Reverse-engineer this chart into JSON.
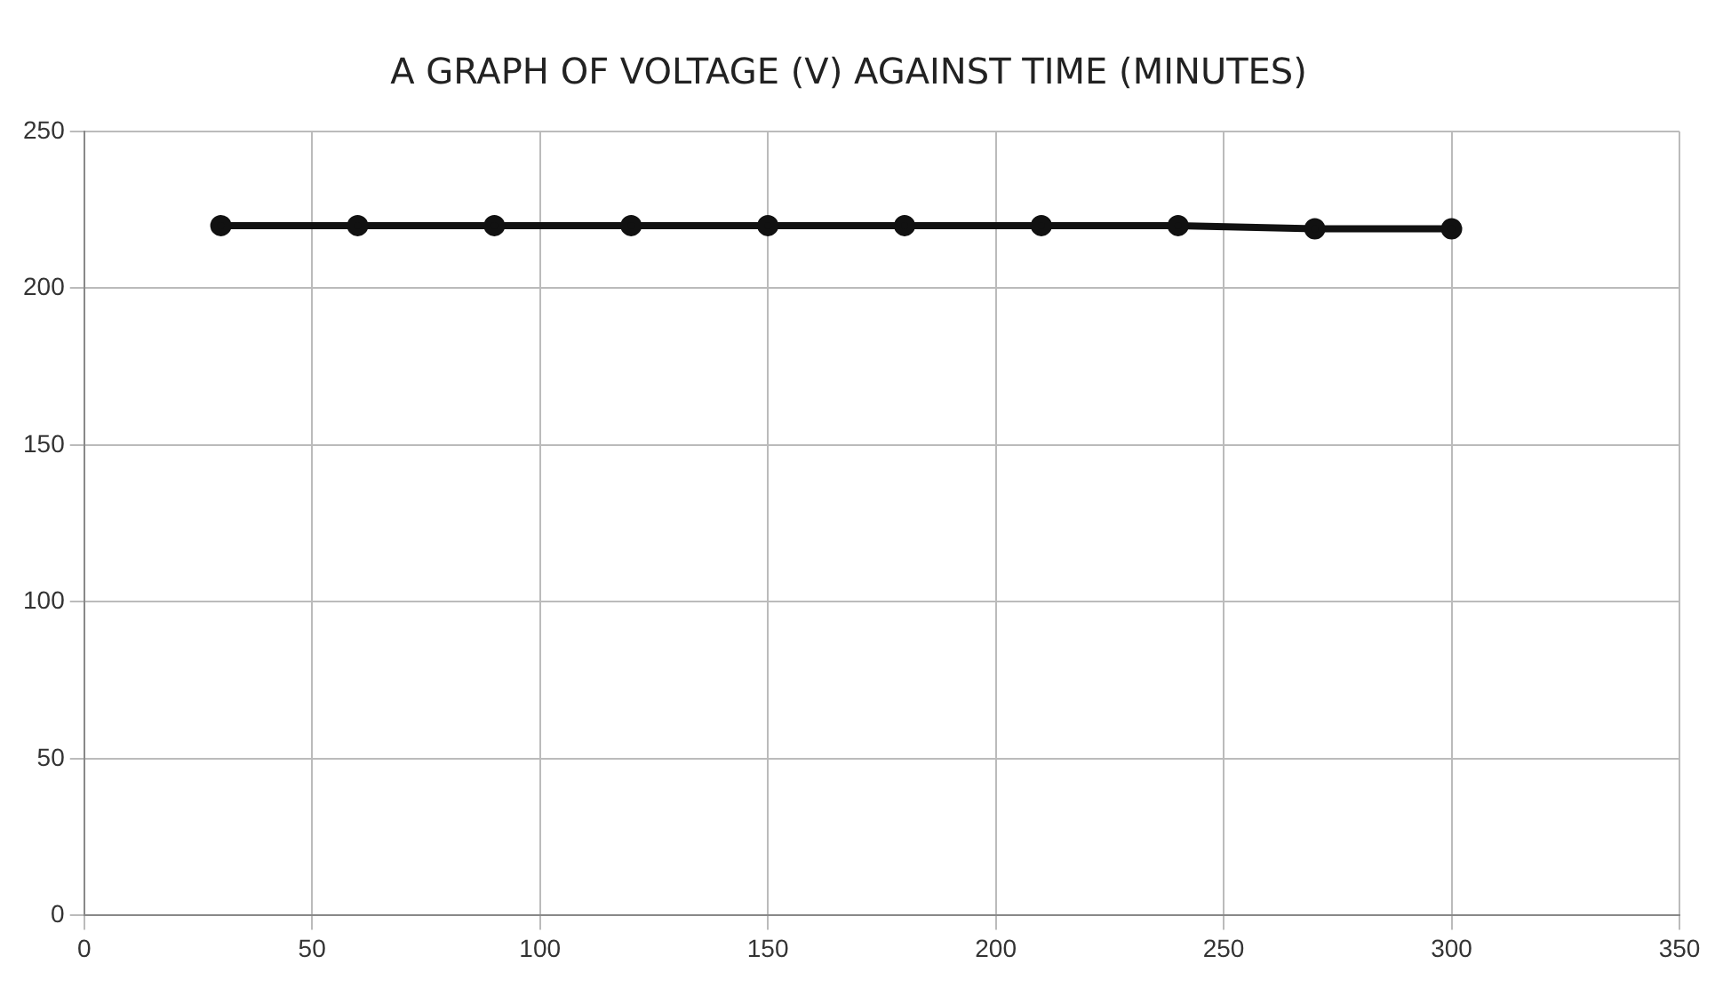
{
  "chart_data": {
    "type": "line",
    "title": "A GRAPH OF VOLTAGE (V) AGAINST TIME (MINUTES)",
    "x": [
      30,
      60,
      90,
      120,
      150,
      180,
      210,
      240,
      270,
      300
    ],
    "series": [
      {
        "color": "#111111",
        "values": [
          220,
          220,
          220,
          220,
          220,
          220,
          220,
          220,
          219,
          219
        ]
      }
    ],
    "xlim": [
      0,
      350
    ],
    "xticks": [
      0,
      50,
      100,
      150,
      200,
      250,
      300,
      350
    ],
    "ylim": [
      0,
      250
    ],
    "yticks": [
      0,
      50,
      100,
      150,
      200,
      250
    ],
    "grid": true,
    "legend": false,
    "marker": "circle",
    "line_style": "solid"
  }
}
